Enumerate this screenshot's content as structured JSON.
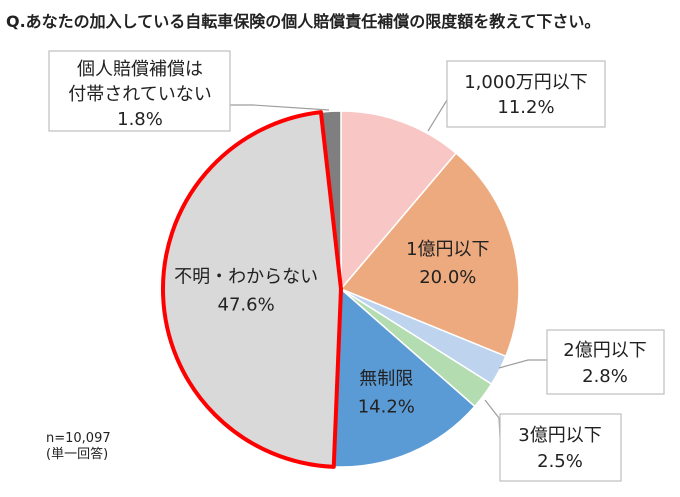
{
  "chart_data": {
    "type": "pie",
    "title": "Q.あなたの加入している自転車保険の個人賠償責任補償の限度額を教えて下さい。",
    "unit": "%",
    "slices": [
      {
        "label": "1,000万円以下",
        "value": 11.2,
        "value_label": "11.2%",
        "color": "#f8c7c5"
      },
      {
        "label": "1億円以下",
        "value": 20.0,
        "value_label": "20.0%",
        "color": "#eeaa7f"
      },
      {
        "label": "2億円以下",
        "value": 2.8,
        "value_label": "2.8%",
        "color": "#bdd3ee"
      },
      {
        "label": "3億円以下",
        "value": 2.5,
        "value_label": "2.5%",
        "color": "#b3dcb0"
      },
      {
        "label": "無制限",
        "value": 14.2,
        "value_label": "14.2%",
        "color": "#5b9bd5"
      },
      {
        "label": "不明・わからない",
        "value": 47.6,
        "value_label": "47.6%",
        "color": "#d9d9d9",
        "highlight": true,
        "highlight_color": "#ff0000"
      },
      {
        "label_lines": [
          "個人賠償補償は",
          "付帯されていない"
        ],
        "label": "個人賠償補償は付帯されていない",
        "value": 1.8,
        "value_label": "1.8%",
        "color": "#7f7f7f"
      }
    ],
    "note": {
      "sample": "n=10,097",
      "answer_type": "(単一回答)"
    }
  }
}
